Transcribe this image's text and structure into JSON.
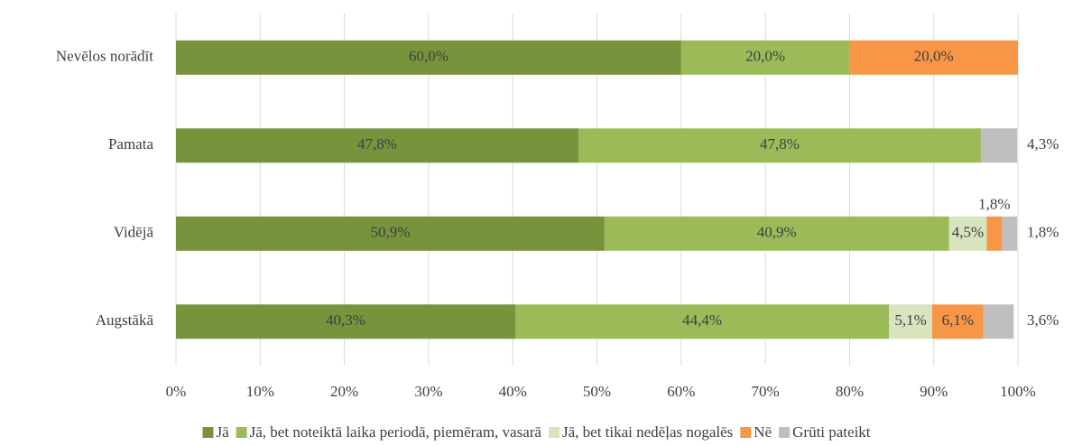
{
  "chart_data": {
    "type": "stacked-barh",
    "categories": [
      "Nevēlos norādīt",
      "Pamata",
      "Vidējā",
      "Augstākā"
    ],
    "series": [
      {
        "name": "Jā",
        "color": "#77933c",
        "values": [
          60.0,
          47.8,
          50.9,
          40.3
        ],
        "value_labels": [
          "60,0%",
          "47,8%",
          "50,9%",
          "40,3%"
        ]
      },
      {
        "name": "Jā, bet noteiktā laika periodā, piemēram, vasarā",
        "color": "#9bbb59",
        "values": [
          20.0,
          47.8,
          40.9,
          44.4
        ],
        "value_labels": [
          "20,0%",
          "47,8%",
          "40,9%",
          "44,4%"
        ]
      },
      {
        "name": "Jā, bet tikai nedēļas nogalēs",
        "color": "#d7e4bd",
        "values": [
          null,
          null,
          4.5,
          5.1
        ],
        "value_labels": [
          null,
          null,
          "4,5%",
          "5,1%"
        ]
      },
      {
        "name": "Nē",
        "color": "#f79646",
        "values": [
          20.0,
          null,
          1.8,
          6.1
        ],
        "value_labels": [
          "20,0%",
          null,
          "1,8%",
          "6,1%"
        ]
      },
      {
        "name": "Grūti pateikt",
        "color": "#bfbfbf",
        "values": [
          null,
          4.3,
          1.8,
          3.6
        ],
        "value_labels": [
          null,
          "4,3%",
          "1,8%",
          "3,6%"
        ]
      }
    ],
    "xlim": [
      0,
      100
    ],
    "xticks": [
      {
        "value": 0,
        "label": "0%"
      },
      {
        "value": 10,
        "label": "10%"
      },
      {
        "value": 20,
        "label": "20%"
      },
      {
        "value": 30,
        "label": "30%"
      },
      {
        "value": 40,
        "label": "40%"
      },
      {
        "value": 50,
        "label": "50%"
      },
      {
        "value": 60,
        "label": "60%"
      },
      {
        "value": 70,
        "label": "70%"
      },
      {
        "value": 80,
        "label": "80%"
      },
      {
        "value": 90,
        "label": "90%"
      },
      {
        "value": 100,
        "label": "100%"
      }
    ],
    "grid": true,
    "legend": "bottom"
  }
}
